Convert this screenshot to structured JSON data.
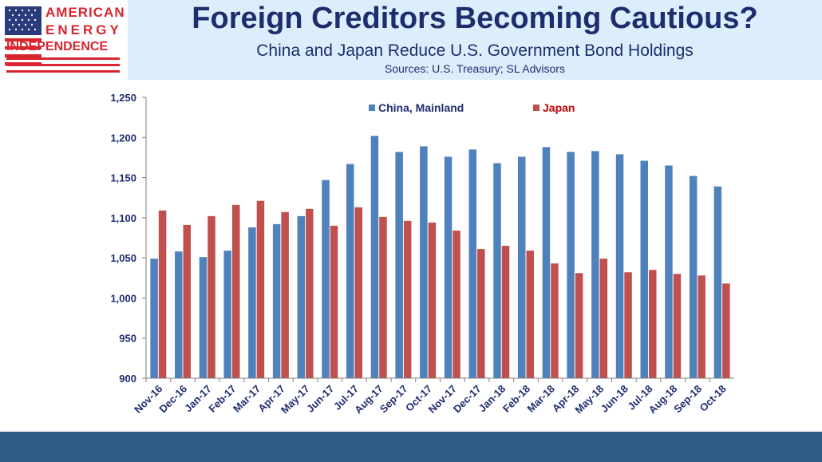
{
  "header": {
    "title": "Foreign Creditors Becoming Cautious?",
    "subtitle": "China and Japan Reduce U.S. Government Bond Holdings",
    "sources": "Sources: U.S. Treasury; SL Advisors"
  },
  "logo": {
    "line1": "AMERICAN",
    "line2": "ENERGY",
    "line3": "INDEPENDENCE",
    "icon": "us-flag-icon"
  },
  "colors": {
    "china": "#4f81bd",
    "japan": "#c0504d",
    "text": "#1f2d6e",
    "header_bg": "#dceefb",
    "footer_bg": "#2e5a86"
  },
  "chart_data": {
    "type": "bar",
    "categories": [
      "Nov-16",
      "Dec-16",
      "Jan-17",
      "Feb-17",
      "Mar-17",
      "Apr-17",
      "May-17",
      "Jun-17",
      "Jul-17",
      "Aug-17",
      "Sep-17",
      "Oct-17",
      "Nov-17",
      "Dec-17",
      "Jan-18",
      "Feb-18",
      "Mar-18",
      "Apr-18",
      "May-18",
      "Jun-18",
      "Jul-18",
      "Aug-18",
      "Sep-18",
      "Oct-18"
    ],
    "series": [
      {
        "name": "China, Mainland",
        "values": [
          1049,
          1058,
          1051,
          1059,
          1088,
          1092,
          1102,
          1147,
          1167,
          1202,
          1182,
          1189,
          1176,
          1185,
          1168,
          1176,
          1188,
          1182,
          1183,
          1179,
          1171,
          1165,
          1152,
          1139
        ]
      },
      {
        "name": "Japan",
        "values": [
          1109,
          1091,
          1102,
          1116,
          1121,
          1107,
          1111,
          1090,
          1113,
          1101,
          1096,
          1094,
          1084,
          1061,
          1065,
          1059,
          1043,
          1031,
          1049,
          1032,
          1035,
          1030,
          1028,
          1018
        ]
      }
    ],
    "ylim": [
      900,
      1250
    ],
    "yticks": [
      900,
      950,
      1000,
      1050,
      1100,
      1150,
      1200,
      1250
    ],
    "ytick_labels": [
      "900",
      "950",
      "1,000",
      "1,050",
      "1,100",
      "1,150",
      "1,200",
      "1,250"
    ],
    "legend_position": "top-center",
    "grid": false
  }
}
